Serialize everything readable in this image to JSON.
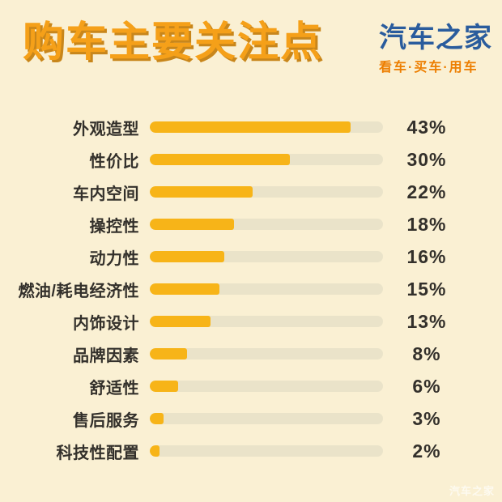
{
  "header": {
    "title": "购车主要关注点",
    "logo": {
      "name": "汽车之家",
      "tagline": "看车·买车·用车"
    }
  },
  "chart_data": {
    "type": "bar",
    "orientation": "horizontal",
    "title": "购车主要关注点",
    "categories": [
      "外观造型",
      "性价比",
      "车内空间",
      "操控性",
      "动力性",
      "燃油/耗电经济性",
      "内饰设计",
      "品牌因素",
      "舒适性",
      "售后服务",
      "科技性配置"
    ],
    "values": [
      43,
      30,
      22,
      18,
      16,
      15,
      13,
      8,
      6,
      3,
      2
    ],
    "value_labels": [
      "43%",
      "30%",
      "22%",
      "18%",
      "16%",
      "15%",
      "13%",
      "8%",
      "6%",
      "3%",
      "2%"
    ],
    "unit": "%",
    "xlim": [
      0,
      50
    ],
    "grid": false,
    "legend": null
  },
  "footer": {
    "watermark": "汽车之家"
  },
  "colors": {
    "background": "#FAF0D3",
    "bar_fill": "#F7B418",
    "bar_track": "#EAE3C9",
    "text": "#33302B",
    "title": "#F5A019",
    "title_shadow": "#C8861B",
    "logo_blue": "#2A5C9D",
    "tagline_orange": "#ED7E00"
  }
}
